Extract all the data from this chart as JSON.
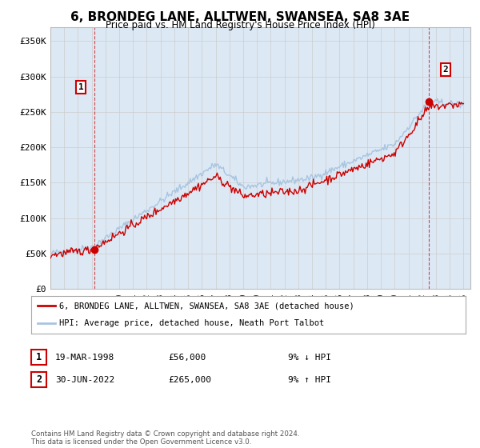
{
  "title": "6, BRONDEG LANE, ALLTWEN, SWANSEA, SA8 3AE",
  "subtitle": "Price paid vs. HM Land Registry's House Price Index (HPI)",
  "ylabel_ticks": [
    "£0",
    "£50K",
    "£100K",
    "£150K",
    "£200K",
    "£250K",
    "£300K",
    "£350K"
  ],
  "ytick_values": [
    0,
    50000,
    100000,
    150000,
    200000,
    250000,
    300000,
    350000
  ],
  "ylim": [
    0,
    370000
  ],
  "xlim_start": 1995.0,
  "xlim_end": 2025.5,
  "sale1_x": 1998.22,
  "sale1_y": 56000,
  "sale1_label": "1",
  "sale2_x": 2022.5,
  "sale2_y": 265000,
  "sale2_label": "2",
  "legend_line1": "6, BRONDEG LANE, ALLTWEN, SWANSEA, SA8 3AE (detached house)",
  "legend_line2": "HPI: Average price, detached house, Neath Port Talbot",
  "table_row1": [
    "1",
    "19-MAR-1998",
    "£56,000",
    "9% ↓ HPI"
  ],
  "table_row2": [
    "2",
    "30-JUN-2022",
    "£265,000",
    "9% ↑ HPI"
  ],
  "footer": "Contains HM Land Registry data © Crown copyright and database right 2024.\nThis data is licensed under the Open Government Licence v3.0.",
  "hpi_color": "#a8c4e0",
  "price_color": "#cc0000",
  "marker_color": "#cc0000",
  "grid_color": "#cccccc",
  "bg_color": "#ffffff",
  "plot_bg_color": "#dce9f5"
}
